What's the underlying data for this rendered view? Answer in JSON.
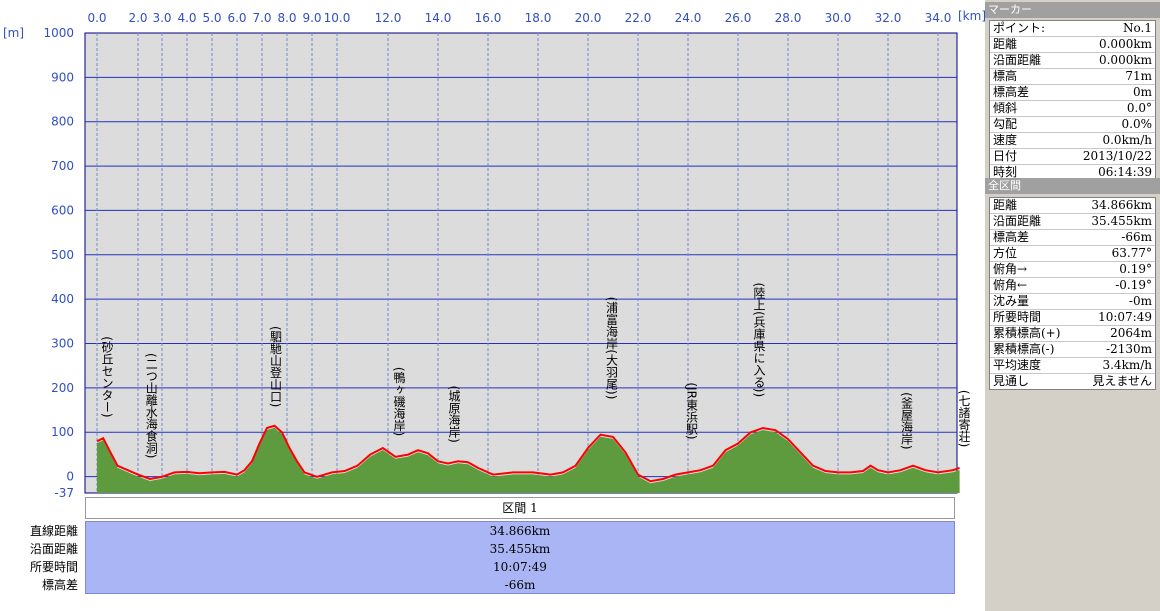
{
  "units": {
    "y": "[m]",
    "x": "[km]"
  },
  "chart_data": {
    "type": "area",
    "x_ticks": [
      "0.0",
      "2.0",
      "3.0",
      "4.0",
      "5.0",
      "6.0",
      "7.0",
      "8.0",
      "9.0",
      "10.0",
      "12.0",
      "14.0",
      "16.0",
      "18.0",
      "20.0",
      "22.0",
      "24.0",
      "26.0",
      "28.0",
      "30.0",
      "32.0",
      "34.0"
    ],
    "y_ticks": [
      "1000",
      "900",
      "800",
      "700",
      "600",
      "500",
      "400",
      "300",
      "200",
      "100",
      "0",
      "-37"
    ],
    "ylim": [
      -37,
      1000
    ],
    "grid": true,
    "series": [
      {
        "color": "#5e9a3e"
      },
      {
        "color": "#ff0000"
      }
    ],
    "profile": [
      [
        0,
        75
      ],
      [
        0.3,
        82
      ],
      [
        0.6,
        55
      ],
      [
        1.0,
        20
      ],
      [
        1.5,
        10
      ],
      [
        2.0,
        0
      ],
      [
        2.5,
        -10
      ],
      [
        3.0,
        -5
      ],
      [
        3.5,
        5
      ],
      [
        4.0,
        6
      ],
      [
        4.5,
        3
      ],
      [
        5.0,
        5
      ],
      [
        5.5,
        6
      ],
      [
        6.0,
        0
      ],
      [
        6.3,
        10
      ],
      [
        6.6,
        30
      ],
      [
        6.9,
        70
      ],
      [
        7.2,
        105
      ],
      [
        7.5,
        110
      ],
      [
        7.8,
        95
      ],
      [
        8.1,
        60
      ],
      [
        8.4,
        30
      ],
      [
        8.7,
        5
      ],
      [
        9.2,
        -5
      ],
      [
        9.8,
        5
      ],
      [
        10.3,
        8
      ],
      [
        10.8,
        20
      ],
      [
        11.3,
        45
      ],
      [
        11.8,
        60
      ],
      [
        12.3,
        40
      ],
      [
        12.8,
        45
      ],
      [
        13.2,
        55
      ],
      [
        13.6,
        48
      ],
      [
        14.0,
        30
      ],
      [
        14.4,
        25
      ],
      [
        14.8,
        30
      ],
      [
        15.2,
        28
      ],
      [
        15.6,
        15
      ],
      [
        16.2,
        0
      ],
      [
        17.0,
        5
      ],
      [
        17.8,
        5
      ],
      [
        18.5,
        0
      ],
      [
        19.0,
        5
      ],
      [
        19.5,
        20
      ],
      [
        20.0,
        60
      ],
      [
        20.5,
        90
      ],
      [
        21.0,
        85
      ],
      [
        21.5,
        50
      ],
      [
        22.0,
        0
      ],
      [
        22.5,
        -15
      ],
      [
        23.0,
        -10
      ],
      [
        23.5,
        0
      ],
      [
        24.0,
        5
      ],
      [
        24.5,
        10
      ],
      [
        25.0,
        20
      ],
      [
        25.5,
        55
      ],
      [
        26.0,
        70
      ],
      [
        26.5,
        95
      ],
      [
        27.0,
        105
      ],
      [
        27.5,
        100
      ],
      [
        28.0,
        80
      ],
      [
        28.5,
        50
      ],
      [
        29.0,
        20
      ],
      [
        29.5,
        8
      ],
      [
        30.0,
        5
      ],
      [
        30.5,
        5
      ],
      [
        31.0,
        8
      ],
      [
        31.3,
        20
      ],
      [
        31.6,
        10
      ],
      [
        32.0,
        5
      ],
      [
        32.5,
        10
      ],
      [
        33.0,
        20
      ],
      [
        33.5,
        10
      ],
      [
        34.0,
        5
      ],
      [
        34.6,
        10
      ],
      [
        34.866,
        15
      ]
    ],
    "annotations": [
      {
        "x": 0.2,
        "label": "(砂丘センター)"
      },
      {
        "x": 2.3,
        "label": "(二つ山離水海食洞)"
      },
      {
        "x": 7.3,
        "label": "(駟馳山登山口)"
      },
      {
        "x": 12.2,
        "label": "(鴨ヶ磯海岸)"
      },
      {
        "x": 14.4,
        "label": "(城原海岸)"
      },
      {
        "x": 20.7,
        "label": "(浦富海岸(大羽尾))"
      },
      {
        "x": 23.9,
        "label": "(JR東浜駅)"
      },
      {
        "x": 26.6,
        "label": "(陸上(兵庫県に入る))"
      },
      {
        "x": 32.5,
        "label": "(釜屋海岸)"
      },
      {
        "x": 34.8,
        "label": "(七諸寄荘)"
      }
    ]
  },
  "section": {
    "header": "区間 1",
    "labels": [
      "直線距離",
      "沿面距離",
      "所要時間",
      "標高差"
    ],
    "values": [
      "34.866km",
      "35.455km",
      "10:07:49",
      "-66m"
    ]
  },
  "marker_panel": {
    "title": "マーカー",
    "rows": [
      {
        "label": "ポイント:",
        "value": "No.1"
      },
      {
        "label": "距離",
        "value": "0.000km"
      },
      {
        "label": "沿面距離",
        "value": "0.000km"
      },
      {
        "label": "標高",
        "value": "71m"
      },
      {
        "label": "標高差",
        "value": "0m"
      },
      {
        "label": "傾斜",
        "value": "0.0°"
      },
      {
        "label": "勾配",
        "value": "0.0%"
      },
      {
        "label": "速度",
        "value": "0.0km/h"
      },
      {
        "label": "日付",
        "value": "2013/10/22"
      },
      {
        "label": "時刻",
        "value": "06:14:39"
      }
    ]
  },
  "all_section_panel": {
    "title": "全区間",
    "rows": [
      {
        "label": "距離",
        "value": "34.866km"
      },
      {
        "label": "沿面距離",
        "value": "35.455km"
      },
      {
        "label": "標高差",
        "value": "-66m"
      },
      {
        "label": "方位",
        "value": "63.77°"
      },
      {
        "label": "俯角→",
        "value": "0.19°"
      },
      {
        "label": "俯角←",
        "value": "-0.19°"
      },
      {
        "label": "沈み量",
        "value": "-0m"
      },
      {
        "label": "所要時間",
        "value": "10:07:49"
      },
      {
        "label": "累積標高(+)",
        "value": "2064m"
      },
      {
        "label": "累積標高(-)",
        "value": "-2130m"
      },
      {
        "label": "平均速度",
        "value": "3.4km/h"
      },
      {
        "label": "見通し",
        "value": "見えません"
      }
    ]
  }
}
